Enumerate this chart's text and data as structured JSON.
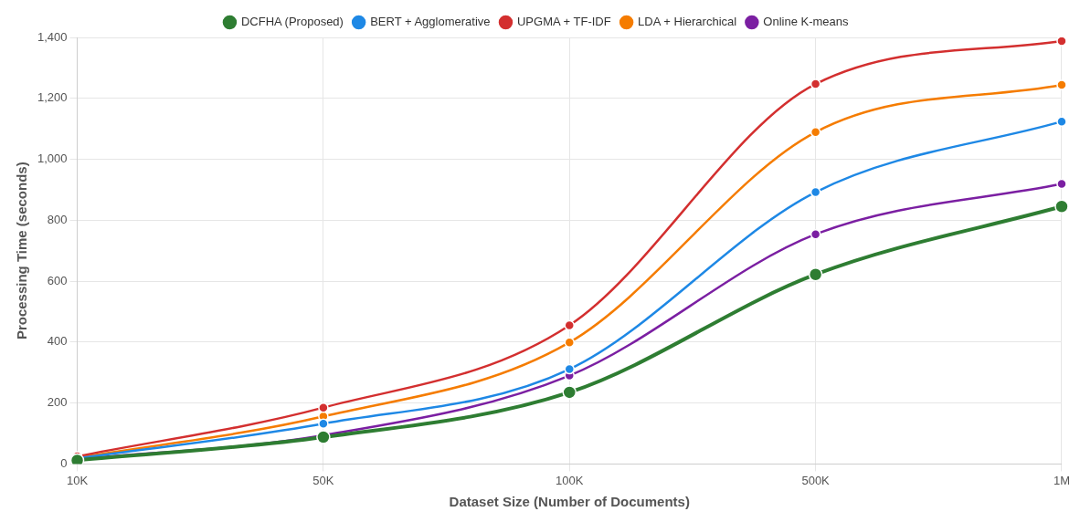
{
  "chart_data": {
    "type": "line",
    "xlabel": "Dataset Size (Number of Documents)",
    "ylabel": "Processing Time (seconds)",
    "categories": [
      "10K",
      "50K",
      "100K",
      "500K",
      "1M"
    ],
    "series": [
      {
        "name": "DCFHA (Proposed)",
        "color": "#2e7d32",
        "values": [
          12,
          88,
          235,
          622,
          845
        ]
      },
      {
        "name": "BERT + Agglomerative",
        "color": "#1e88e5",
        "values": [
          18,
          132,
          311,
          892,
          1124
        ]
      },
      {
        "name": "UPGMA + TF-IDF",
        "color": "#d32f2f",
        "values": [
          25,
          185,
          455,
          1247,
          1388
        ]
      },
      {
        "name": "LDA + Hierarchical",
        "color": "#f57c00",
        "values": [
          20,
          156,
          399,
          1089,
          1244
        ]
      },
      {
        "name": "Online K-means",
        "color": "#7b1fa2",
        "values": [
          15,
          94,
          290,
          754,
          919
        ]
      }
    ],
    "ylim": [
      0,
      1400
    ],
    "yticks": [
      0,
      {
        "value": 200,
        "label": "200"
      },
      {
        "value": 400,
        "label": "400"
      },
      {
        "value": 600,
        "label": "600"
      },
      {
        "value": 800,
        "label": "800"
      },
      {
        "value": 1000,
        "label": "1,000"
      },
      {
        "value": 1200,
        "label": "1,200"
      },
      {
        "value": 1400,
        "label": "1,400"
      }
    ],
    "grid": true,
    "legend": "top",
    "marker": "circle",
    "line_style": "solid"
  }
}
